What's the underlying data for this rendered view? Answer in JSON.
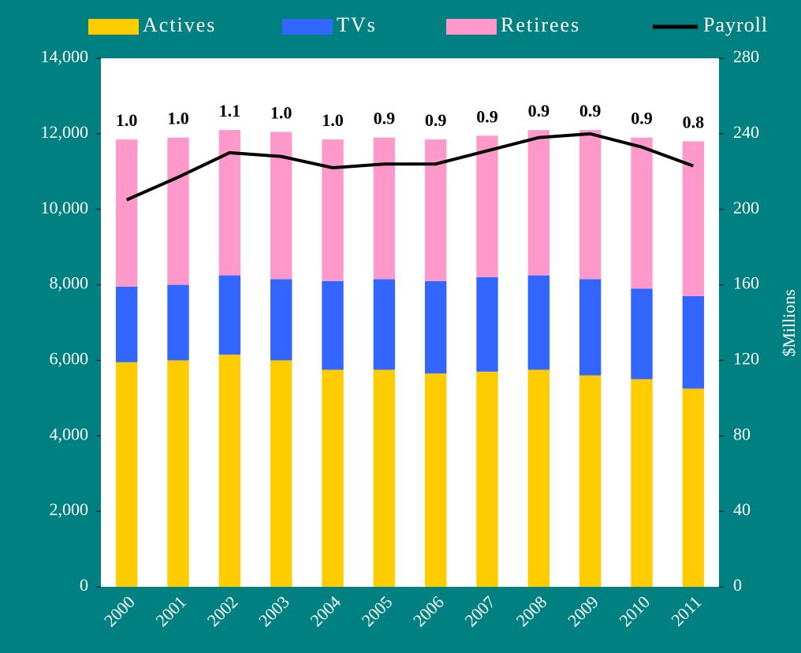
{
  "chart_data": {
    "type": "bar",
    "stacked": true,
    "categories": [
      "2000",
      "2001",
      "2002",
      "2003",
      "2004",
      "2005",
      "2006",
      "2007",
      "2008",
      "2009",
      "2010",
      "2011"
    ],
    "series": [
      {
        "name": "Actives",
        "color": "#ffcc00",
        "values": [
          5950,
          6000,
          6150,
          6000,
          5750,
          5750,
          5650,
          5700,
          5750,
          5600,
          5500,
          5250
        ]
      },
      {
        "name": "TVs",
        "color": "#3366ff",
        "values": [
          2000,
          2000,
          2100,
          2150,
          2350,
          2400,
          2450,
          2500,
          2500,
          2550,
          2400,
          2450
        ]
      },
      {
        "name": "Retirees",
        "color": "#ff99cc",
        "values": [
          3900,
          3900,
          3850,
          3900,
          3750,
          3750,
          3750,
          3750,
          3850,
          3950,
          4000,
          4100
        ]
      },
      {
        "name": "Payroll",
        "color": "#000000",
        "type": "line",
        "axis": "y2",
        "values": [
          205,
          217,
          230,
          228,
          222,
          224,
          224,
          231,
          238,
          240,
          233,
          223
        ]
      }
    ],
    "bar_top_labels": [
      "1.0",
      "1.0",
      "1.1",
      "1.0",
      "1.0",
      "0.9",
      "0.9",
      "0.9",
      "0.9",
      "0.9",
      "0.9",
      "0.8"
    ],
    "ylim": [
      0,
      14000
    ],
    "yticks": [
      0,
      {
        "value": 2000,
        "label": "2,000"
      },
      {
        "value": 4000,
        "label": "4,000"
      },
      {
        "value": 6000,
        "label": "6,000"
      },
      {
        "value": 8000,
        "label": "8,000"
      },
      {
        "value": 10000,
        "label": "10,000"
      },
      {
        "value": 12000,
        "label": "12,000"
      },
      {
        "value": 14000,
        "label": "14,000"
      }
    ],
    "y2lim": [
      0,
      280
    ],
    "y2ticks": [
      0,
      40,
      80,
      120,
      160,
      200,
      240,
      280
    ],
    "y2label": "$Millions",
    "legend": "top",
    "background": "#008080",
    "plot_background": "#ffffff"
  }
}
